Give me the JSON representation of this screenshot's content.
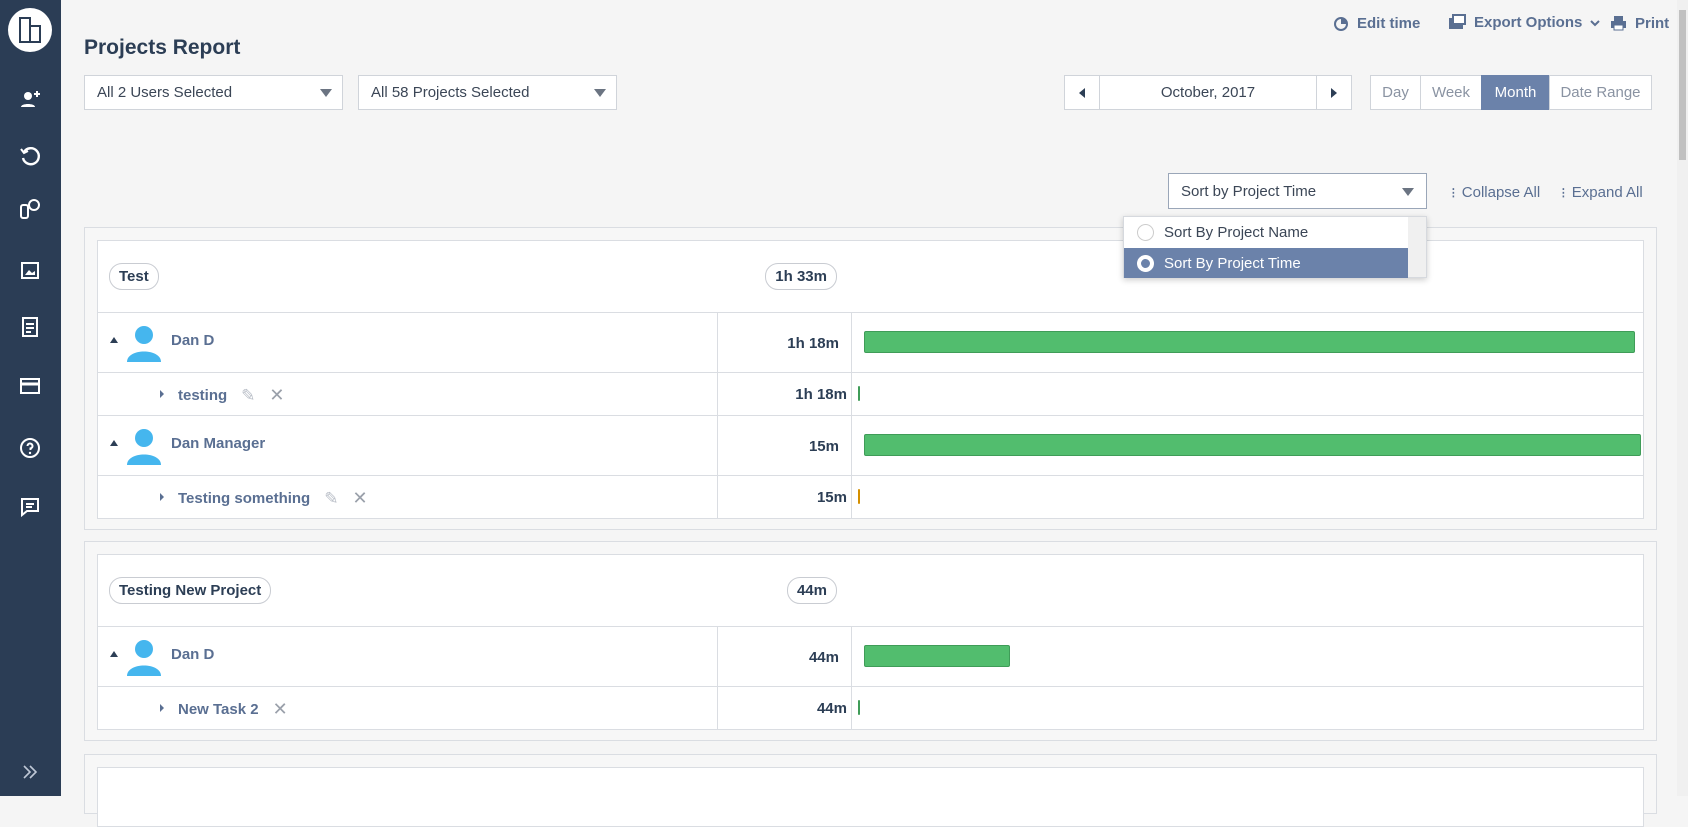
{
  "header": {
    "title": "Projects Report",
    "edit_time": "Edit time",
    "export_options": "Export Options",
    "print": "Print"
  },
  "filters": {
    "users": "All 2 Users Selected",
    "projects": "All 58 Projects Selected",
    "date": "October, 2017",
    "periods": [
      "Day",
      "Week",
      "Month",
      "Date Range"
    ],
    "active_period": "Month"
  },
  "sort": {
    "selected": "Sort by Project Time",
    "options": [
      "Sort By Project Name",
      "Sort By Project Time"
    ],
    "collapse_all": "Collapse All",
    "expand_all": "Expand All"
  },
  "projects": [
    {
      "name": "Test",
      "total": "1h 33m",
      "users": [
        {
          "name": "Dan D",
          "time": "1h 18m",
          "tasks": [
            {
              "name": "testing",
              "time": "1h 18m"
            }
          ]
        },
        {
          "name": "Dan Manager",
          "time": "15m",
          "tasks": [
            {
              "name": "Testing something",
              "time": "15m"
            }
          ]
        }
      ]
    },
    {
      "name": "Testing New Project",
      "total": "44m",
      "users": [
        {
          "name": "Dan D",
          "time": "44m",
          "tasks": [
            {
              "name": "New Task 2",
              "time": "44m"
            }
          ]
        }
      ]
    }
  ]
}
